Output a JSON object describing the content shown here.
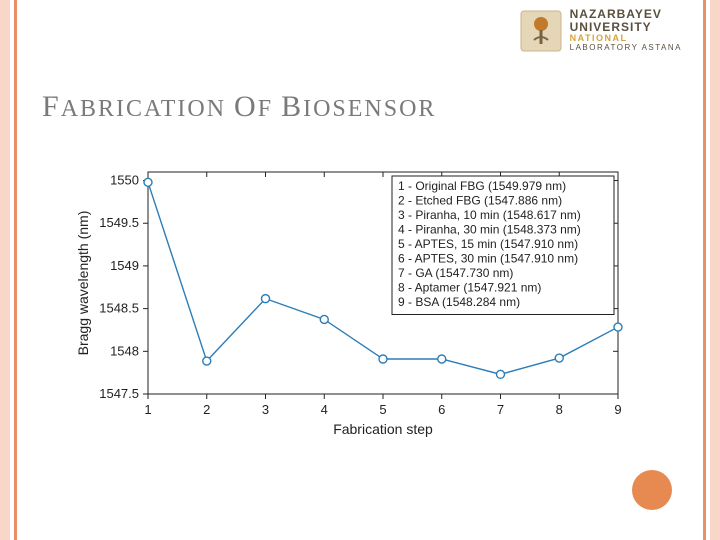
{
  "logo": {
    "line1": "NAZARBAYEV",
    "line2": "UNIVERSITY",
    "line3": "NATIONAL",
    "line4": "LABORATORY ASTANA",
    "badge_colors": {
      "bg": "#e5d6b8",
      "accent": "#c17a2a",
      "stem": "#7a6340"
    }
  },
  "title": {
    "letters": "FABRICATION OF BIOSENSOR"
  },
  "chart": {
    "type": "line",
    "x_values": [
      1,
      2,
      3,
      4,
      5,
      6,
      7,
      8,
      9
    ],
    "y_values": [
      1549.979,
      1547.886,
      1548.617,
      1548.373,
      1547.91,
      1547.91,
      1547.73,
      1547.921,
      1548.284
    ],
    "xlabel": "Fabrication step",
    "ylabel": "Bragg wavelength (nm)",
    "xlim": [
      1,
      9
    ],
    "ylim": [
      1547.5,
      1550.1
    ],
    "xtick_step": 1,
    "yticks": [
      1547.5,
      1548,
      1548.5,
      1549,
      1549.5,
      1550
    ],
    "ytick_labels": [
      "1547.5",
      "1548",
      "1548.5",
      "1549",
      "1549.5",
      "1550"
    ],
    "line_color": "#2b7db8",
    "marker_face": "#ffffff",
    "marker_edge": "#2b7db8",
    "marker_size": 4,
    "line_width": 1.4,
    "background_color": "#ffffff",
    "axis_color": "#222222",
    "label_fontsize": 14,
    "tick_fontsize": 13,
    "legend": {
      "position": "upper-right-inside",
      "border_color": "#222222",
      "bg_color": "#ffffff",
      "fontsize": 12,
      "lines": [
        "1 - Original FBG (1549.979 nm)",
        "2 - Etched FBG (1547.886 nm)",
        "3 - Piranha, 10 min (1548.617 nm)",
        "4 - Piranha, 30 min (1548.373 nm)",
        "5 - APTES, 15 min (1547.910 nm)",
        "6 - APTES, 30 min (1547.910 nm)",
        "7 - GA (1547.730 nm)",
        "8 - Aptamer (1547.921 nm)",
        "9 - BSA (1548.284 nm)"
      ]
    }
  },
  "accent_dot_color": "#e78a52",
  "side_stripe_outer": "#f8d7c8",
  "side_stripe_inner": "#e89068"
}
